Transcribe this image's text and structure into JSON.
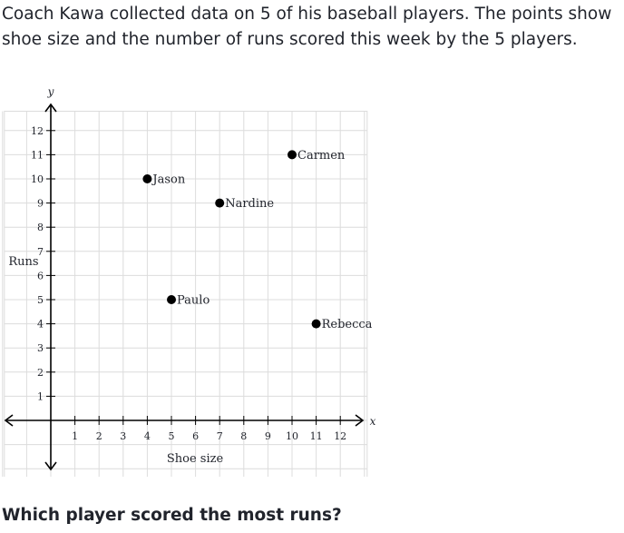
{
  "question": {
    "text": "Coach Kawa collected data on 5 of his baseball players. The points show shoe size and the number of runs scored this week by the 5 players."
  },
  "prompt": {
    "text": "Which player scored the most runs?"
  },
  "chart_data": {
    "type": "scatter",
    "xlabel": "Shoe size",
    "ylabel": "Runs",
    "x_axis_letter": "x",
    "y_axis_letter": "y",
    "xlim": [
      -2,
      13
    ],
    "ylim": [
      -3,
      13
    ],
    "x_ticks": [
      1,
      2,
      3,
      4,
      5,
      6,
      7,
      8,
      9,
      10,
      11,
      12
    ],
    "y_ticks": [
      1,
      2,
      3,
      4,
      5,
      6,
      7,
      8,
      9,
      10,
      11,
      12
    ],
    "grid": true,
    "point_color": "#000000",
    "points": [
      {
        "label": "Carmen",
        "x": 10,
        "y": 11
      },
      {
        "label": "Jason",
        "x": 4,
        "y": 10
      },
      {
        "label": "Nardine",
        "x": 7,
        "y": 9
      },
      {
        "label": "Paulo",
        "x": 5,
        "y": 5
      },
      {
        "label": "Rebecca",
        "x": 11,
        "y": 4
      }
    ]
  }
}
